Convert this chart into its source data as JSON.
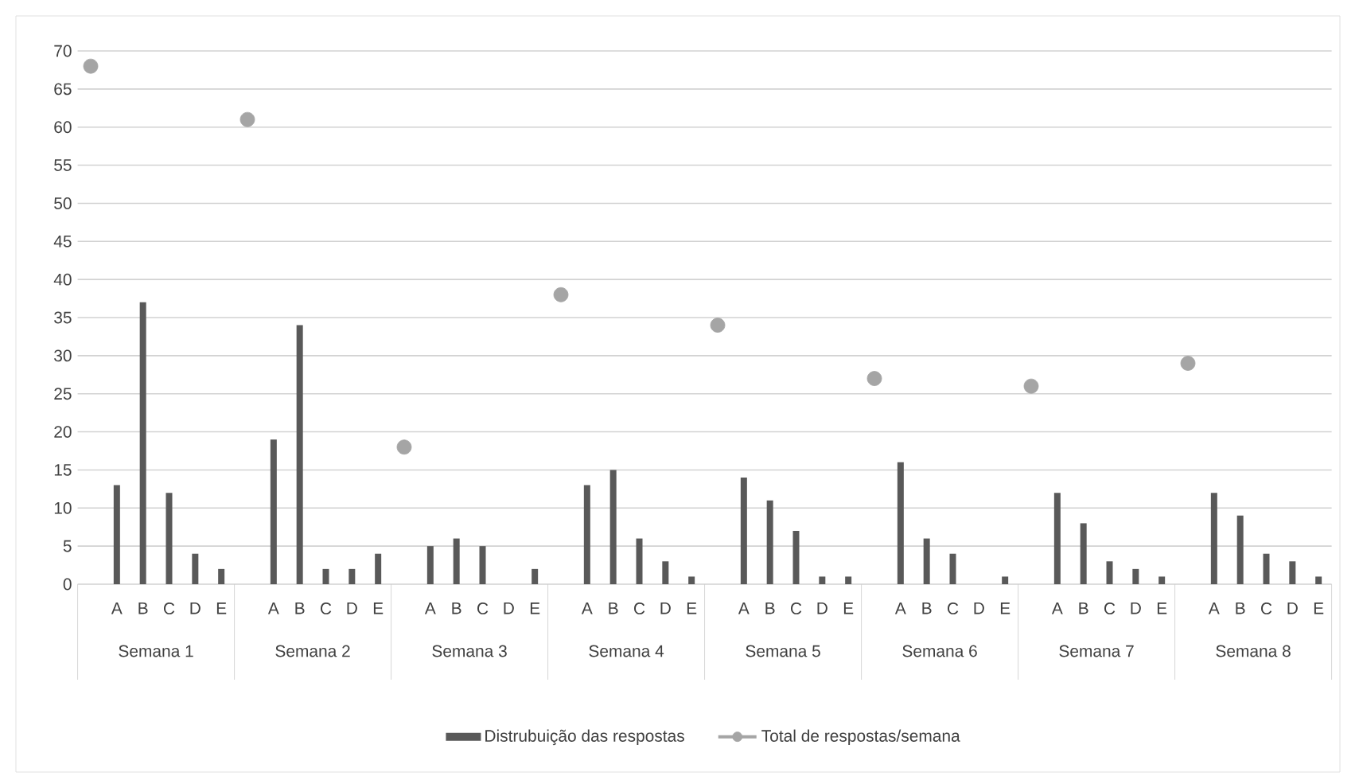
{
  "chart_data": {
    "type": "bar",
    "categories": [
      null,
      "A",
      "B",
      "C",
      "D",
      "E",
      null,
      "A",
      "B",
      "C",
      "D",
      "E",
      null,
      "A",
      "B",
      "C",
      "D",
      "E",
      null,
      "A",
      "B",
      "C",
      "D",
      "E",
      null,
      "A",
      "B",
      "C",
      "D",
      "E",
      null,
      "A",
      "B",
      "C",
      "D",
      "E",
      null,
      "A",
      "B",
      "C",
      "D",
      "E",
      null,
      "A",
      "B",
      "C",
      "D",
      "E"
    ],
    "series": [
      {
        "name": "Distrubuição das respostas",
        "color": "#595959",
        "values": [
          null,
          13,
          37,
          12,
          4,
          2,
          null,
          19,
          34,
          2,
          2,
          4,
          null,
          5,
          6,
          5,
          0,
          2,
          null,
          13,
          15,
          6,
          3,
          1,
          null,
          14,
          11,
          7,
          1,
          1,
          null,
          16,
          6,
          4,
          0,
          1,
          null,
          12,
          8,
          3,
          2,
          1,
          null,
          12,
          9,
          4,
          3,
          1
        ]
      },
      {
        "name": "Total de respostas/semana",
        "type": "scatter",
        "marker": "circle",
        "color": "#a5a5a5",
        "values": [
          68,
          null,
          null,
          null,
          null,
          null,
          61,
          null,
          null,
          null,
          null,
          null,
          18,
          null,
          null,
          null,
          null,
          null,
          38,
          null,
          null,
          null,
          null,
          null,
          34,
          null,
          null,
          null,
          null,
          null,
          27,
          null,
          null,
          null,
          null,
          null,
          26,
          null,
          null,
          null,
          null,
          null,
          29,
          null,
          null,
          null,
          null,
          null
        ]
      }
    ],
    "annotations": [
      "Semana 1",
      "Semana 2",
      "Semana 3",
      "Semana 4",
      "Semana 5",
      "Semana 6",
      "Semana 7",
      "Semana 8"
    ],
    "ylim": [
      0,
      70
    ],
    "yticks": [
      0,
      5,
      10,
      15,
      20,
      25,
      30,
      35,
      40,
      45,
      50,
      55,
      60,
      65,
      70
    ],
    "grid": "y",
    "legend": "bottom"
  }
}
